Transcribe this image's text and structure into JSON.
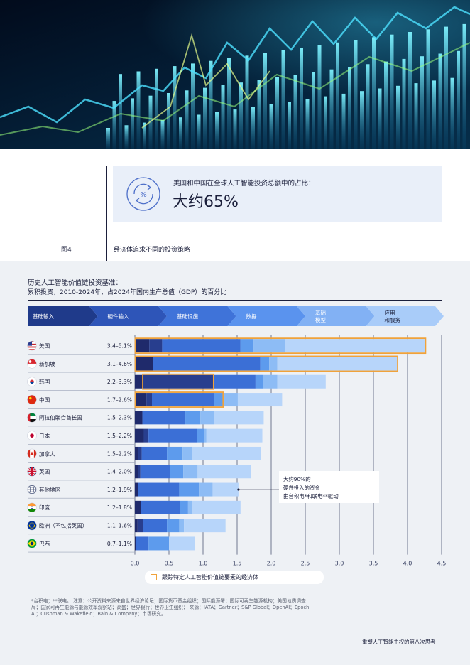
{
  "stat": {
    "label": "美国和中国在全球人工智能投资总额中的占比：",
    "value": "大约65%"
  },
  "figure": {
    "number": "图4",
    "title": "经济体追求不同的投资策略"
  },
  "chart_data": {
    "type": "bar",
    "orientation": "horizontal",
    "stacked": true,
    "title": "历史人工智能价值链投资基准：",
    "subtitle": "累积投资，2010-2024年，占2024年国内生产总值（GDP）的百分比",
    "value_chain": [
      "基础输入",
      "硬件输入",
      "基础设施",
      "数据",
      "基础\n模型",
      "应用\n和服务"
    ],
    "segment_colors": [
      "#1f2a6b",
      "#283e8e",
      "#3b6fd6",
      "#5d9bed",
      "#8dbcf5",
      "#b7d5fa"
    ],
    "highlight_color": "#f0a23a",
    "xlim": [
      0,
      4.5
    ],
    "xticks": [
      0.0,
      0.5,
      1.0,
      1.5,
      2.0,
      2.5,
      3.0,
      3.5,
      4.0,
      4.5
    ],
    "grid": true,
    "categories": [
      {
        "name": "美国",
        "flag": "us",
        "range": "3.4–5.1%",
        "segments": [
          0.21,
          0.19,
          1.15,
          0.19,
          0.46,
          2.07
        ],
        "highlight": [
          0,
          6
        ]
      },
      {
        "name": "新加坡",
        "flag": "sg",
        "range": "3.1–4.6%",
        "segments": [
          0.27,
          0.0,
          1.57,
          0.13,
          0.12,
          1.77
        ],
        "highlight": [
          0,
          6
        ]
      },
      {
        "name": "韩国",
        "flag": "kr",
        "range": "2.2–3.3%",
        "segments": [
          0.11,
          1.05,
          0.61,
          0.11,
          0.21,
          0.71
        ],
        "highlight": [
          1,
          2
        ]
      },
      {
        "name": "中国",
        "flag": "cn",
        "range": "1.7–2.6%",
        "segments": [
          0.17,
          0.08,
          0.91,
          0.14,
          0.21,
          0.65
        ],
        "highlight": [
          0,
          4
        ]
      },
      {
        "name": "阿拉伯联合酋长国",
        "flag": "ae",
        "range": "1.5–2.3%",
        "segments": [
          0.11,
          0.0,
          0.63,
          0.22,
          0.2,
          0.73
        ],
        "highlight": null
      },
      {
        "name": "日本",
        "flag": "jp",
        "range": "1.5–2.2%",
        "segments": [
          0.13,
          0.07,
          0.71,
          0.11,
          0.03,
          0.82
        ],
        "highlight": null
      },
      {
        "name": "加拿大",
        "flag": "ca",
        "range": "1.5–2.2%",
        "segments": [
          0.05,
          0.05,
          0.37,
          0.23,
          0.14,
          1.01
        ],
        "highlight": null
      },
      {
        "name": "英国",
        "flag": "gb",
        "range": "1.4–2.0%",
        "segments": [
          0.05,
          0.03,
          0.44,
          0.19,
          0.21,
          0.78
        ],
        "highlight": null
      },
      {
        "name": "其他地区",
        "flag": "globe",
        "range": "1.2–1.9%",
        "segments": [
          0.05,
          0.0,
          0.6,
          0.29,
          0.2,
          0.38
        ],
        "highlight": [
          1,
          2
        ]
      },
      {
        "name": "印度",
        "flag": "in",
        "range": "1.2–1.8%",
        "segments": [
          0.09,
          0.0,
          0.57,
          0.12,
          0.06,
          0.71
        ],
        "highlight": null
      },
      {
        "name": "欧洲（不包括英国）",
        "flag": "eu",
        "range": "1.1–1.6%",
        "segments": [
          0.04,
          0.08,
          0.35,
          0.18,
          0.07,
          0.61
        ],
        "highlight": null
      },
      {
        "name": "巴西",
        "flag": "br",
        "range": "0.7–1.1%",
        "segments": [
          0.02,
          0.0,
          0.18,
          0.3,
          0.0,
          0.38
        ],
        "highlight": null
      }
    ],
    "legend": "跟踪特定人工智能价值链要素的经济体",
    "annotation": {
      "lines": [
        "大约90%的",
        "硬件投入的资金",
        "由台积电*和联电**驱动"
      ],
      "target": "其他地区"
    }
  },
  "footnote": "*台积电；**联电。 注意：公开资料来源来自世界经济论坛；国际货币基金组织；国际能源署；国际可再生能源机构；美国地质调查局；国家可再生能源与能源效率观察站；高盛；世界银行；世界卫生组织； 来源：IATA；Gartner；S&P Global；OpenAI；Epoch AI；Cushman & Wakefield；Bain & Company；市场研究。",
  "footer": "重塑人工智能主权的第八次思考"
}
